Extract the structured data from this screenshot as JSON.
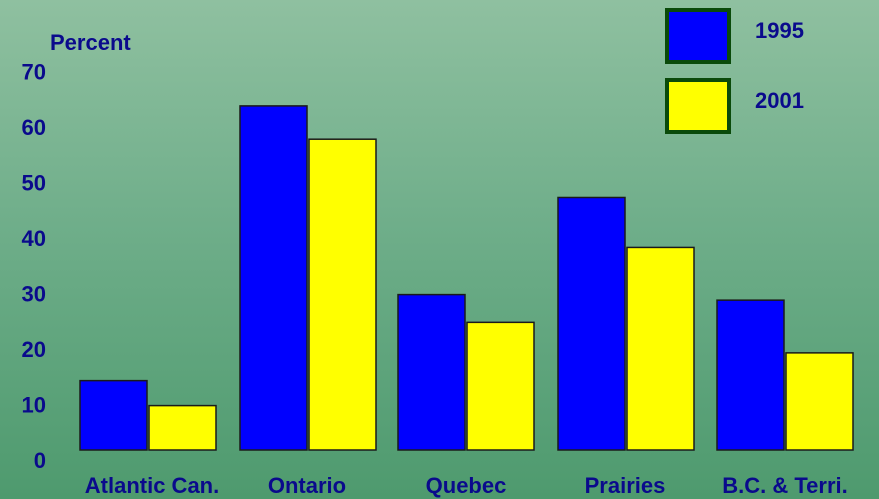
{
  "chart_data": {
    "type": "bar",
    "categories": [
      "Atlantic Can.",
      "Ontario",
      "Quebec",
      "Prairies",
      "B.C. & Terri."
    ],
    "series": [
      {
        "name": "1995",
        "values": [
          12.5,
          62,
          28,
          45.5,
          27
        ],
        "color": "#0000ff"
      },
      {
        "name": "2001",
        "values": [
          8,
          56,
          23,
          36.5,
          17.5
        ],
        "color": "#ffff00"
      }
    ],
    "ylabel": "Percent",
    "xlabel": "",
    "title": "",
    "ylim": [
      0,
      70
    ],
    "yticks": [
      0,
      10,
      20,
      30,
      40,
      50,
      60,
      70
    ],
    "grid": false,
    "legend_position": "top-right"
  }
}
